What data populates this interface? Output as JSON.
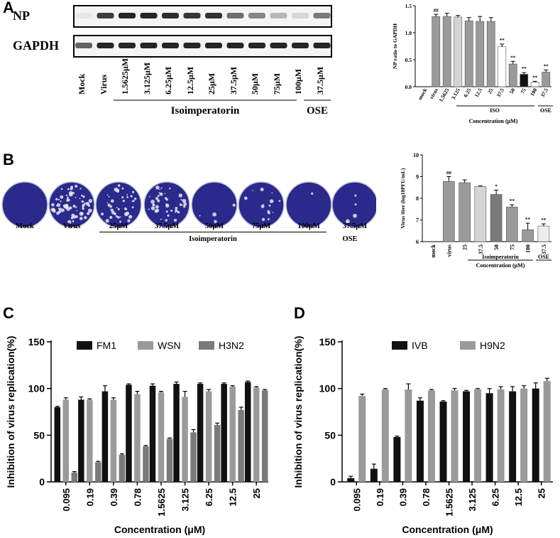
{
  "colors": {
    "dark": "#111111",
    "mid": "#9a9a9a",
    "light": "#d4d4d4",
    "plate": "#2a2a8c",
    "gray3": "#7a7a7a"
  },
  "panelA": {
    "label": "A",
    "blot_labels": [
      "NP",
      "GAPDH"
    ],
    "lanes": [
      "Mock",
      "Virus",
      "1.5625μM",
      "3.125μM",
      "6.25μM",
      "12.5μM",
      "25μM",
      "37.5μM",
      "50μM",
      "75μM",
      "100μM",
      "37.5μM"
    ],
    "group_iso": "Isoimperatorin",
    "group_ose": "OSE",
    "np_intensity": [
      0.05,
      0.75,
      0.85,
      0.85,
      0.82,
      0.78,
      0.8,
      0.55,
      0.45,
      0.25,
      0.12,
      0.5
    ],
    "gapdh_intensity": [
      0.6,
      0.85,
      0.85,
      0.85,
      0.85,
      0.85,
      0.85,
      0.85,
      0.85,
      0.85,
      0.85,
      0.85
    ]
  },
  "panelB": {
    "label": "B",
    "plates": [
      "Mock",
      "Virus",
      "25μM",
      "37.5μM",
      "50μM",
      "75μM",
      "100μM",
      "37.5μM"
    ],
    "plate_density": [
      0,
      0.95,
      0.55,
      0.6,
      0.05,
      0.2,
      0.02,
      0.05
    ],
    "group_iso": "Isoimperatorin",
    "group_ose": "OSE"
  },
  "panelC": {
    "label": "C"
  },
  "panelD": {
    "label": "D"
  },
  "chart_data": [
    {
      "id": "A-bar",
      "type": "bar",
      "categories": [
        "mock",
        "virus",
        "1.5625",
        "3.125",
        "6.25",
        "12.5",
        "25",
        "37.5",
        "50",
        "75",
        "100",
        "37.5"
      ],
      "values": [
        0,
        1.3,
        1.3,
        1.29,
        1.22,
        1.21,
        1.21,
        0.74,
        0.42,
        0.23,
        0.08,
        0.27
      ],
      "errors": [
        0,
        0.04,
        0.06,
        0.03,
        0.06,
        0.09,
        0.07,
        0.05,
        0.05,
        0.03,
        0.02,
        0.04
      ],
      "annotations": [
        "",
        "##",
        "",
        "",
        "",
        "",
        "",
        "**",
        "**",
        "**",
        "**",
        "**"
      ],
      "ylabel": "NP ratio to GAPDH",
      "xlabel": "Concentration (μM)",
      "ylim": [
        0,
        1.5
      ],
      "yticks": [
        "0.0",
        "0.5",
        "1.0",
        "1.5"
      ],
      "group_iso": "ISO",
      "group_ose": "OSE"
    },
    {
      "id": "B-bar",
      "type": "bar",
      "categories": [
        "mock",
        "virus",
        "25",
        "37.5",
        "50",
        "75",
        "100",
        "37.5"
      ],
      "values": [
        6,
        8.78,
        8.72,
        8.55,
        8.18,
        7.6,
        6.55,
        6.72
      ],
      "errors": [
        0,
        0.22,
        0.13,
        0.02,
        0.2,
        0.1,
        0.3,
        0.1
      ],
      "annotations": [
        "",
        "##",
        "",
        "",
        "*",
        "**",
        "**",
        "**"
      ],
      "ylabel": "Virus titer (log10PFU/mL)",
      "xlabel": "Concentration (μM)",
      "ylim": [
        6,
        10
      ],
      "yticks": [
        "6",
        "7",
        "8",
        "9",
        "10"
      ],
      "group_iso": "Isoimperatorin",
      "group_ose": "OSE"
    },
    {
      "id": "C-bar",
      "type": "bar",
      "categories": [
        "0.095",
        "0.19",
        "0.39",
        "0.78",
        "1.5625",
        "3.125",
        "6.25",
        "12.5",
        "25"
      ],
      "series": [
        {
          "name": "FM1",
          "values": [
            80,
            88,
            97,
            104,
            103,
            105,
            105,
            105,
            107
          ],
          "errors": [
            1,
            3,
            6,
            1,
            2,
            2,
            1,
            1,
            1
          ]
        },
        {
          "name": "WSN",
          "values": [
            88,
            88,
            88,
            94,
            96,
            91,
            97,
            102,
            101
          ],
          "errors": [
            2,
            1,
            2,
            3,
            1,
            6,
            2,
            1,
            1
          ]
        },
        {
          "name": "H3N2",
          "values": [
            10,
            21,
            29,
            38,
            46,
            53,
            61,
            77,
            98
          ],
          "errors": [
            1,
            1,
            1,
            1,
            1,
            3,
            2,
            3,
            1
          ]
        }
      ],
      "ylabel": "Inhibition of virus replication(%)",
      "xlabel": "Concentration (μM)",
      "ylim": [
        0,
        150
      ],
      "yticks": [
        "0",
        "50",
        "100",
        "150"
      ]
    },
    {
      "id": "D-bar",
      "type": "bar",
      "categories": [
        "0.095",
        "0.19",
        "0.39",
        "0.78",
        "1.5625",
        "3.125",
        "6.25",
        "12.5",
        "25"
      ],
      "series": [
        {
          "name": "IVB",
          "values": [
            4,
            14,
            48,
            87,
            86,
            97,
            95,
            97,
            100
          ],
          "errors": [
            2,
            5,
            1,
            3,
            1,
            1,
            5,
            5,
            6
          ]
        },
        {
          "name": "H9N2",
          "values": [
            92,
            99,
            99,
            98,
            98,
            99,
            99,
            100,
            108
          ],
          "errors": [
            2,
            1,
            6,
            1,
            2,
            1,
            3,
            3,
            3
          ]
        }
      ],
      "ylabel": "Inhibition of virus replication(%)",
      "xlabel": "Concentration (μM)",
      "ylim": [
        0,
        150
      ],
      "yticks": [
        "0",
        "50",
        "100",
        "150"
      ]
    }
  ]
}
